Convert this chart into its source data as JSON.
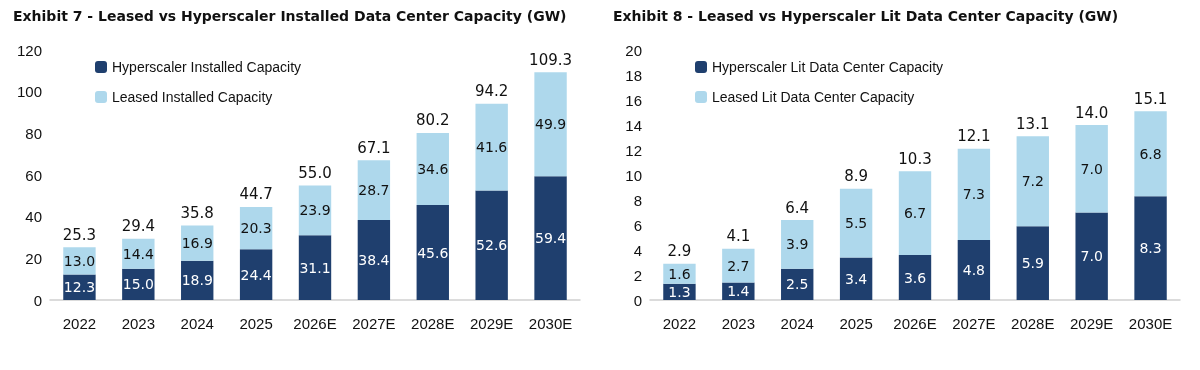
{
  "chart_data": [
    {
      "type": "bar",
      "title": "Exhibit 7 - Leased vs Hyperscaler Installed Data Center Capacity (GW)",
      "categories": [
        "2022",
        "2023",
        "2024",
        "2025",
        "2026E",
        "2027E",
        "2028E",
        "2029E",
        "2030E"
      ],
      "stacked": true,
      "legend": "top left",
      "grid": false,
      "ylim": [
        0,
        120
      ],
      "yticks": [
        0,
        20,
        40,
        60,
        80,
        100,
        120
      ],
      "series": [
        {
          "name": "Hyperscaler Installed Capacity",
          "color": "#1f3f6e",
          "values": [
            12.3,
            15.0,
            18.9,
            24.4,
            31.1,
            38.4,
            45.6,
            52.6,
            59.4
          ],
          "value_labels": [
            "12.3",
            "15.0",
            "18.9",
            "24.4",
            "31.1",
            "38.4",
            "45.6",
            "52.6",
            "59.4"
          ]
        },
        {
          "name": "Leased Installed Capacity",
          "color": "#aed8ec",
          "values": [
            13.0,
            14.4,
            16.9,
            20.3,
            23.9,
            28.7,
            34.6,
            41.6,
            49.9
          ],
          "value_labels": [
            "13.0",
            "14.4",
            "16.9",
            "20.3",
            "23.9",
            "28.7",
            "34.6",
            "41.6",
            "49.9"
          ]
        }
      ],
      "totals": [
        "25.3",
        "29.4",
        "35.8",
        "44.7",
        "55.0",
        "67.1",
        "80.2",
        "94.2",
        "109.3"
      ]
    },
    {
      "type": "bar",
      "title": "Exhibit 8 - Leased vs Hyperscaler Lit Data Center Capacity (GW)",
      "categories": [
        "2022",
        "2023",
        "2024",
        "2025",
        "2026E",
        "2027E",
        "2028E",
        "2029E",
        "2030E"
      ],
      "stacked": true,
      "legend": "top left",
      "grid": false,
      "ylim": [
        0,
        20
      ],
      "yticks": [
        0,
        2,
        4,
        6,
        8,
        10,
        12,
        14,
        16,
        18,
        20
      ],
      "series": [
        {
          "name": "Hyperscaler Lit Data Center Capacity",
          "color": "#1f3f6e",
          "values": [
            1.3,
            1.4,
            2.5,
            3.4,
            3.6,
            4.8,
            5.9,
            7.0,
            8.3
          ],
          "value_labels": [
            "1.3",
            "1.4",
            "2.5",
            "3.4",
            "3.6",
            "4.8",
            "5.9",
            "7.0",
            "8.3"
          ]
        },
        {
          "name": "Leased Lit Data Center Capacity",
          "color": "#aed8ec",
          "values": [
            1.6,
            2.7,
            3.9,
            5.5,
            6.7,
            7.3,
            7.2,
            7.0,
            6.8
          ],
          "value_labels": [
            "1.6",
            "2.7",
            "3.9",
            "5.5",
            "6.7",
            "7.3",
            "7.2",
            "7.0",
            "6.8"
          ]
        }
      ],
      "totals": [
        "2.9",
        "4.1",
        "6.4",
        "8.9",
        "10.3",
        "12.1",
        "13.1",
        "14.0",
        "15.1"
      ]
    }
  ]
}
